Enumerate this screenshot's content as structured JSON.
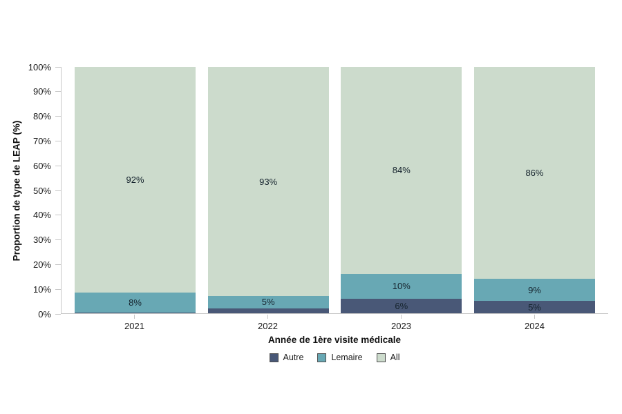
{
  "chart_data": {
    "type": "bar",
    "stacked": true,
    "title": "",
    "xlabel": "Année de 1ère visite médicale",
    "ylabel": "Proportion de type de LEAP (%)",
    "categories": [
      "2021",
      "2022",
      "2023",
      "2024"
    ],
    "series": [
      {
        "name": "Autre",
        "color": "#495877",
        "values": [
          0.4,
          2,
          6,
          5
        ],
        "labels": [
          "",
          "",
          "6%",
          "5%"
        ]
      },
      {
        "name": "Lemaire",
        "color": "#68a8b4",
        "values": [
          8,
          5,
          10,
          9
        ],
        "labels": [
          "8%",
          "5%",
          "10%",
          "9%"
        ]
      },
      {
        "name": "All",
        "color": "#ccdbcc",
        "values": [
          92,
          93,
          84,
          86
        ],
        "labels": [
          "92%",
          "93%",
          "84%",
          "86%"
        ]
      }
    ],
    "ylim": [
      0,
      100
    ],
    "yticks": [
      "0%",
      "10%",
      "20%",
      "30%",
      "40%",
      "50%",
      "60%",
      "70%",
      "80%",
      "90%",
      "100%"
    ],
    "grid": false,
    "legend_position": "bottom",
    "axis_color": "#c6c6c6",
    "label_text_color": "#15232d"
  }
}
